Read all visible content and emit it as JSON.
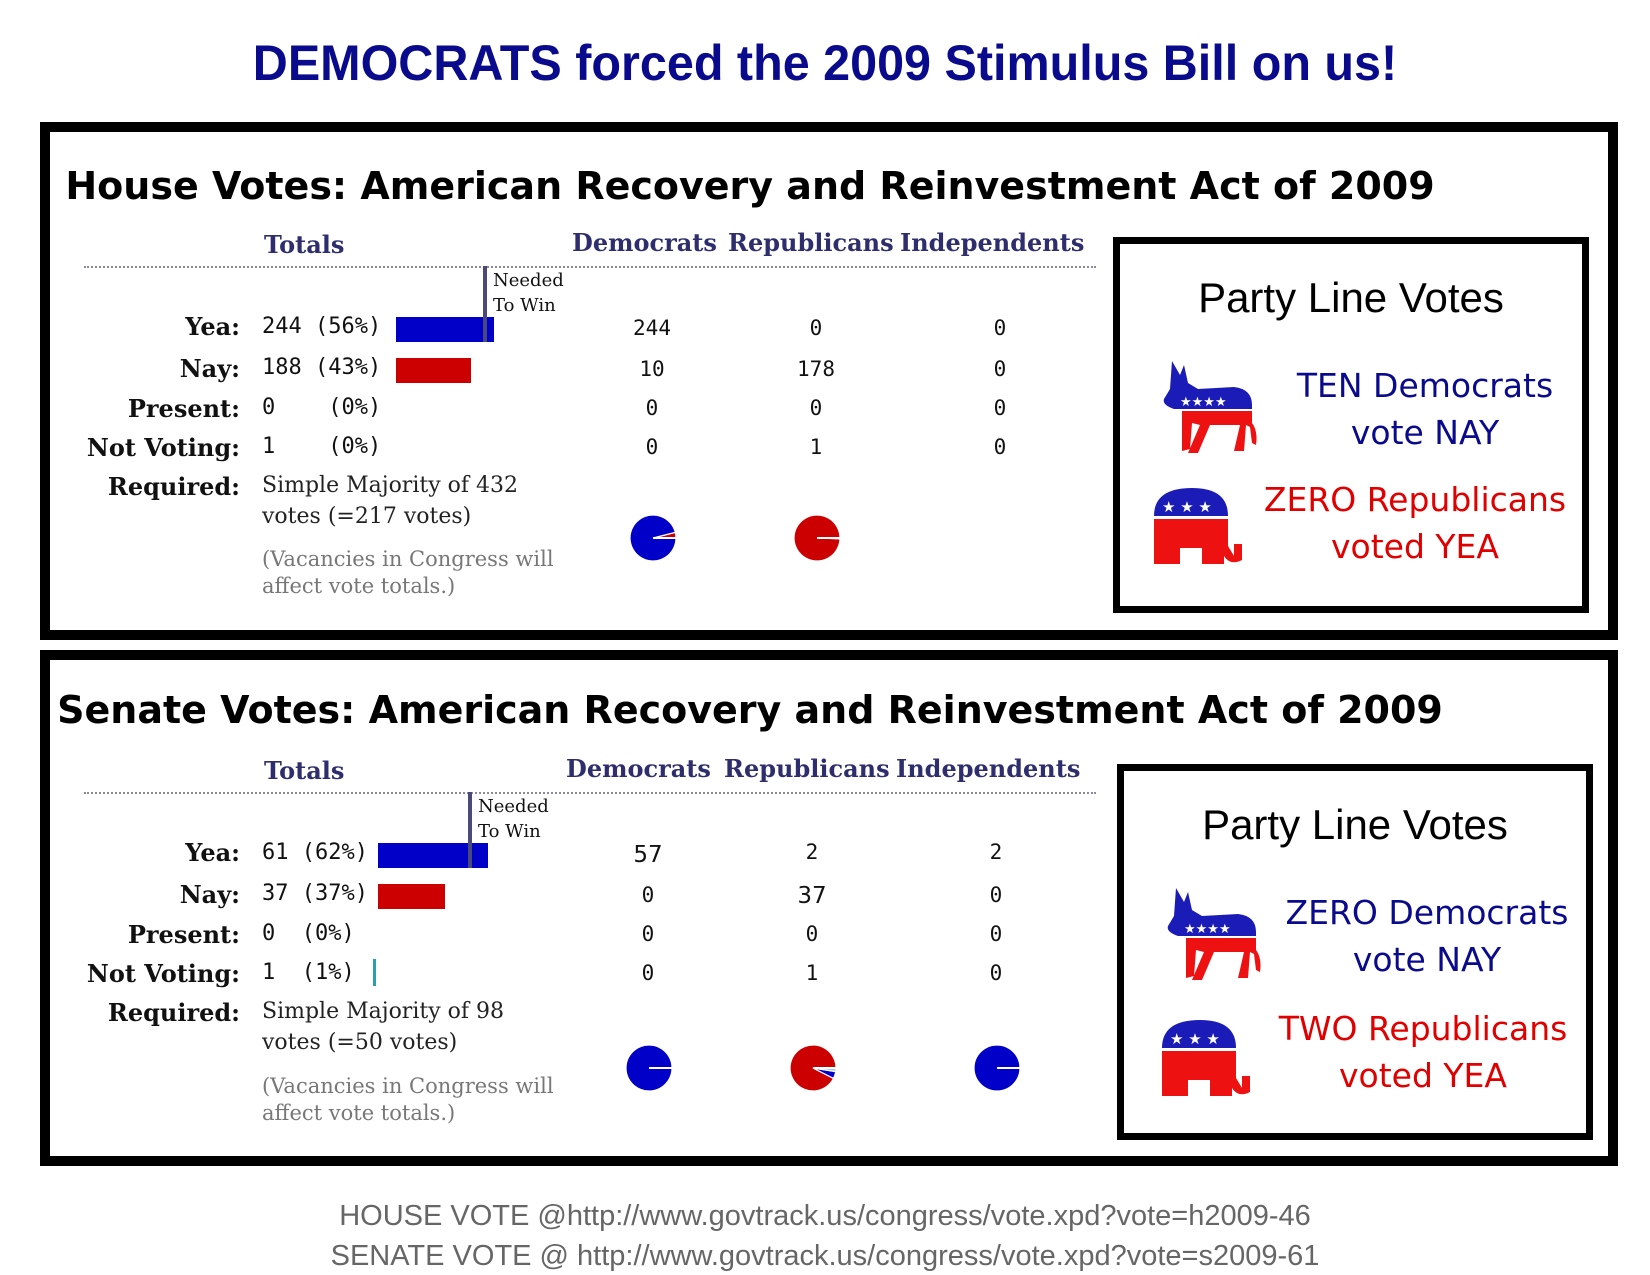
{
  "title": "DEMOCRATS forced the 2009 Stimulus Bill on us!",
  "colors": {
    "title": "#0a0a8c",
    "democrat_blue": "#0000c8",
    "republican_red": "#cc0000",
    "party_dem_text": "#0a0a8c",
    "party_rep_text": "#e00000"
  },
  "column_headers": {
    "totals": "Totals",
    "democrats": "Democrats",
    "republicans": "Republicans",
    "independents": "Independents"
  },
  "row_labels": {
    "yea": "Yea:",
    "nay": "Nay:",
    "present": "Present:",
    "not_voting": "Not Voting:",
    "required": "Required:"
  },
  "needed_to_win": {
    "line1": "Needed",
    "line2": "To Win"
  },
  "note": {
    "line1": "(Vacancies in Congress will",
    "line2": "affect vote totals.)"
  },
  "house": {
    "title": "House Votes: American Recovery and Reinvestment Act of 2009",
    "totals": {
      "yea": "244 (56%)",
      "nay": "188 (43%)",
      "present": "0    (0%)",
      "not_voting": "1    (0%)"
    },
    "bar_values": {
      "yea": 244,
      "nay": 188,
      "needed": 217
    },
    "required": {
      "line1": "Simple Majority of 432",
      "line2": "votes (=217 votes)"
    },
    "democrats": {
      "yea": "244",
      "nay": "10",
      "present": "0",
      "not_voting": "0"
    },
    "republicans": {
      "yea": "0",
      "nay": "178",
      "present": "0",
      "not_voting": "1"
    },
    "independents": {
      "yea": "0",
      "nay": "0",
      "present": "0",
      "not_voting": "0"
    },
    "pies": {
      "democrats": {
        "yea": 244,
        "nay": 10,
        "other": 0
      },
      "republicans": {
        "yea": 0,
        "nay": 178,
        "other": 1
      }
    },
    "party_line": {
      "title": "Party Line Votes",
      "dem_line1": "TEN Democrats",
      "dem_line2": "vote NAY",
      "rep_line1": "ZERO Republicans",
      "rep_line2": "voted YEA"
    }
  },
  "senate": {
    "title": "Senate Votes: American Recovery and Reinvestment Act of 2009",
    "totals": {
      "yea": "61 (62%)",
      "nay": "37 (37%)",
      "present": "0  (0%)",
      "not_voting": "1  (1%)"
    },
    "bar_values": {
      "yea": 61,
      "nay": 37,
      "needed": 50
    },
    "required": {
      "line1": "Simple Majority of 98",
      "line2": "votes (=50 votes)"
    },
    "democrats": {
      "yea": "57",
      "nay": "0",
      "present": "0",
      "not_voting": "0"
    },
    "republicans": {
      "yea": "2",
      "nay": "37",
      "present": "0",
      "not_voting": "1"
    },
    "independents": {
      "yea": "2",
      "nay": "0",
      "present": "0",
      "not_voting": "0"
    },
    "pies": {
      "democrats": {
        "yea": 57,
        "nay": 0,
        "other": 0
      },
      "republicans": {
        "yea": 2,
        "nay": 37,
        "other": 1
      },
      "independents": {
        "yea": 2,
        "nay": 0,
        "other": 0
      }
    },
    "party_line": {
      "title": "Party Line Votes",
      "dem_line1": "ZERO Democrats",
      "dem_line2": "vote NAY",
      "rep_line1": "TWO Republicans",
      "rep_line2": "voted YEA"
    }
  },
  "footer": {
    "house_source": "HOUSE VOTE @http://www.govtrack.us/congress/vote.xpd?vote=h2009-46",
    "senate_source": "SENATE VOTE @ http://www.govtrack.us/congress/vote.xpd?vote=s2009-61"
  },
  "icons": {
    "democrat": "donkey-icon",
    "republican": "elephant-icon"
  }
}
